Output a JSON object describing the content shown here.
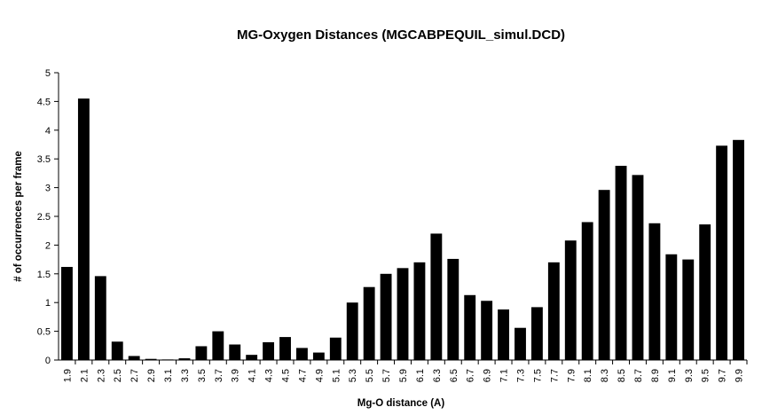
{
  "chart_data": {
    "type": "bar",
    "title": "MG-Oxygen Distances (MGCABPEQUIL_simul.DCD)",
    "xlabel": "Mg-O distance (A)",
    "ylabel": "# of occurrences per frame",
    "ylim": [
      0,
      5
    ],
    "yticks": [
      "0",
      "0.5",
      "1",
      "1.5",
      "2",
      "2.5",
      "3",
      "3.5",
      "4",
      "4.5",
      "5"
    ],
    "grid": false,
    "legend": "none",
    "bar_color": "#000000",
    "categories": [
      "1.9",
      "2.1",
      "2.3",
      "2.5",
      "2.7",
      "2.9",
      "3.1",
      "3.3",
      "3.5",
      "3.7",
      "3.9",
      "4.1",
      "4.3",
      "4.5",
      "4.7",
      "4.9",
      "5.1",
      "5.3",
      "5.5",
      "5.7",
      "5.9",
      "6.1",
      "6.3",
      "6.5",
      "6.7",
      "6.9",
      "7.1",
      "7.3",
      "7.5",
      "7.7",
      "7.9",
      "8.1",
      "8.3",
      "8.5",
      "8.7",
      "8.9",
      "9.1",
      "9.3",
      "9.5",
      "9.7",
      "9.9"
    ],
    "values": [
      1.62,
      4.55,
      1.46,
      0.32,
      0.07,
      0.02,
      0.01,
      0.03,
      0.24,
      0.5,
      0.27,
      0.09,
      0.31,
      0.4,
      0.21,
      0.13,
      0.39,
      1.0,
      1.27,
      1.5,
      1.6,
      1.7,
      2.2,
      1.76,
      1.13,
      1.03,
      0.88,
      0.56,
      0.92,
      1.7,
      2.08,
      2.4,
      2.96,
      3.38,
      3.22,
      2.38,
      1.84,
      1.75,
      2.36,
      3.73,
      3.83
    ]
  }
}
